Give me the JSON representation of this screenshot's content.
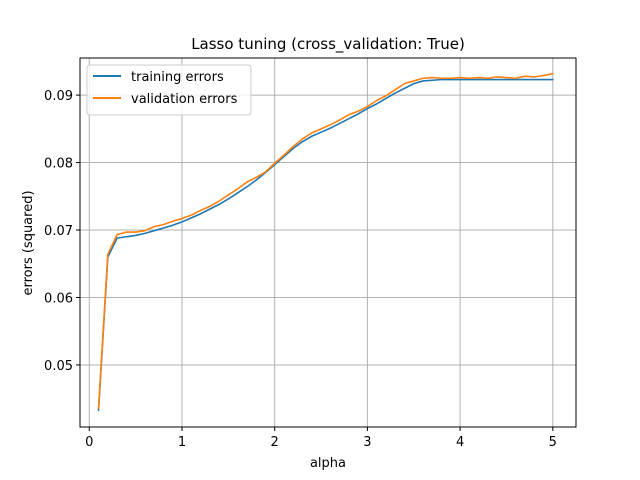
{
  "chart_data": {
    "type": "line",
    "title": "Lasso tuning (cross_validation: True)",
    "xlabel": "alpha",
    "ylabel": "errors (squared)",
    "xlim": [
      -0.1,
      5.25
    ],
    "ylim": [
      0.0408,
      0.0955
    ],
    "xticks": [
      0,
      1,
      2,
      3,
      4,
      5
    ],
    "xtick_labels": [
      "0",
      "1",
      "2",
      "3",
      "4",
      "5"
    ],
    "yticks": [
      0.05,
      0.06,
      0.07,
      0.08,
      0.09
    ],
    "ytick_labels": [
      "0.05",
      "0.06",
      "0.07",
      "0.08",
      "0.09"
    ],
    "grid": true,
    "legend_position": "top-left",
    "x": [
      0.1,
      0.2,
      0.3,
      0.4,
      0.5,
      0.6,
      0.7,
      0.8,
      0.9,
      1.0,
      1.1,
      1.2,
      1.3,
      1.4,
      1.5,
      1.6,
      1.7,
      1.8,
      1.9,
      2.0,
      2.1,
      2.2,
      2.3,
      2.4,
      2.5,
      2.6,
      2.7,
      2.8,
      2.9,
      3.0,
      3.1,
      3.2,
      3.3,
      3.4,
      3.5,
      3.6,
      3.7,
      3.8,
      3.9,
      4.0,
      4.1,
      4.2,
      4.3,
      4.4,
      4.5,
      4.6,
      4.7,
      4.8,
      4.9,
      5.0
    ],
    "series": [
      {
        "name": "training errors",
        "color": "#1f77b4",
        "values": [
          0.0433,
          0.066,
          0.0688,
          0.069,
          0.0692,
          0.0695,
          0.0699,
          0.0703,
          0.0707,
          0.0712,
          0.0718,
          0.0724,
          0.0731,
          0.0738,
          0.0746,
          0.0755,
          0.0764,
          0.0774,
          0.0785,
          0.0797,
          0.0809,
          0.0821,
          0.0831,
          0.0839,
          0.0845,
          0.0851,
          0.0858,
          0.0865,
          0.0872,
          0.088,
          0.0887,
          0.0895,
          0.0903,
          0.091,
          0.0917,
          0.0921,
          0.0922,
          0.0923,
          0.0923,
          0.0923,
          0.0923,
          0.0923,
          0.0923,
          0.0923,
          0.0923,
          0.0923,
          0.0923,
          0.0923,
          0.0923,
          0.0923
        ]
      },
      {
        "name": "validation errors",
        "color": "#ff7f0e",
        "values": [
          0.0436,
          0.0664,
          0.0693,
          0.0697,
          0.0697,
          0.0699,
          0.0705,
          0.0708,
          0.0713,
          0.0717,
          0.0722,
          0.0729,
          0.0735,
          0.0743,
          0.0752,
          0.0761,
          0.0771,
          0.0778,
          0.0786,
          0.0799,
          0.0811,
          0.0824,
          0.0835,
          0.0844,
          0.085,
          0.0856,
          0.0863,
          0.0871,
          0.0876,
          0.0883,
          0.0892,
          0.0899,
          0.0908,
          0.0917,
          0.0921,
          0.0925,
          0.0926,
          0.0925,
          0.0925,
          0.0926,
          0.0925,
          0.0926,
          0.0925,
          0.0927,
          0.0926,
          0.0925,
          0.0928,
          0.0927,
          0.0929,
          0.0932
        ]
      }
    ]
  }
}
